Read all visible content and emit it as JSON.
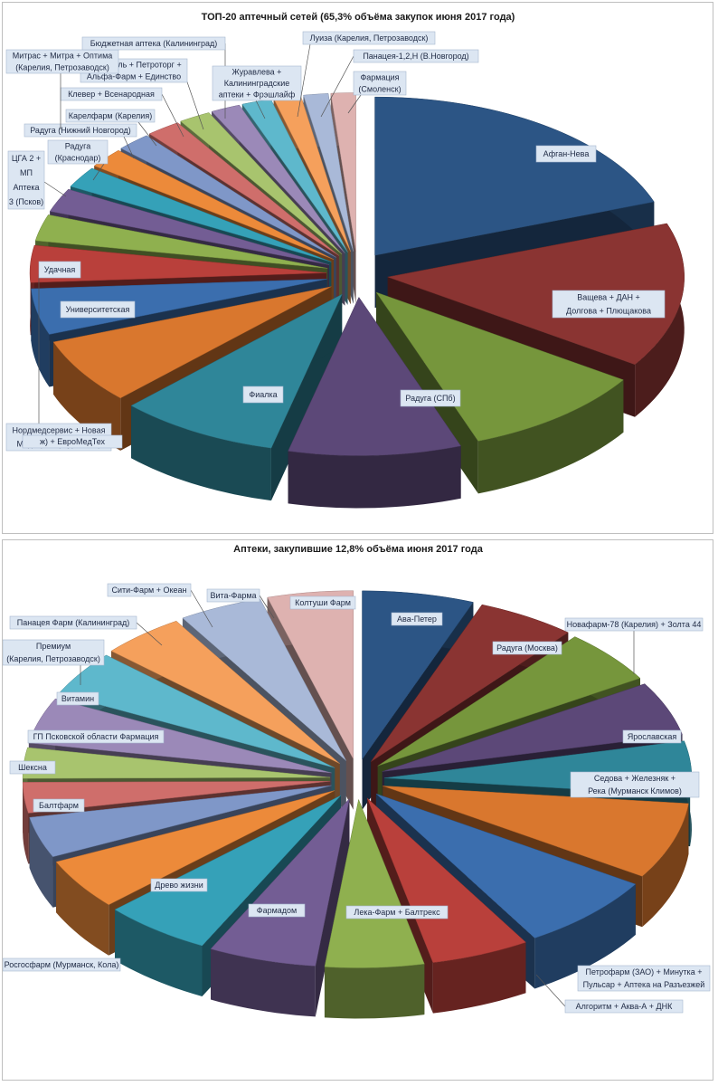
{
  "chart_data": [
    {
      "type": "pie",
      "title": "ТОП-20 аптечный сетей (65,3% объёма закупок июня 2017 года)",
      "slices": [
        {
          "name": "Афган-Нева",
          "value": 14.5,
          "color": "#2c5585"
        },
        {
          "name": "Ващева + ДАН + Долгова + Плющакова",
          "value": 11.0,
          "color": "#8a3432"
        },
        {
          "name": "Радуга (СПб)",
          "value": 7.5,
          "color": "#76963c"
        },
        {
          "name": "Фиалка",
          "value": 7.0,
          "color": "#5c4878"
        },
        {
          "name": "Нордмедсервис + Новая Медицина (Мурманск)",
          "value": 6.5,
          "color": "#2f8699"
        },
        {
          "name": "Университетская",
          "value": 5.0,
          "color": "#d9772e"
        },
        {
          "name": "Удачная",
          "value": 3.5,
          "color": "#3b6eae"
        },
        {
          "name": "ЦГА 2 + МП Аптека 3 (Псков)",
          "value": 2.8,
          "color": "#b9403b"
        },
        {
          "name": "Радуга (Краснодар)",
          "value": 2.0,
          "color": "#8fb04f"
        },
        {
          "name": "Радуга (Нижний Новгород)",
          "value": 1.8,
          "color": "#735d94"
        },
        {
          "name": "Карелфарм (Карелия)",
          "value": 1.6,
          "color": "#35a1b8"
        },
        {
          "name": "Клевер + Всенародная",
          "value": 1.5,
          "color": "#ec8a3a"
        },
        {
          "name": "Петробель + Петроторг + Альфа-Фарм + Единство",
          "value": 1.4,
          "color": "#7f97c8"
        },
        {
          "name": "Митрас + Митра + Оптима (Карелия, Петрозаводск)",
          "value": 1.4,
          "color": "#cf6e6b"
        },
        {
          "name": "Бюджетная аптека (Калининград)",
          "value": 1.3,
          "color": "#a8c46e"
        },
        {
          "name": "Журавлева + Калининградские аптеки + Фрэшлайф",
          "value": 1.2,
          "color": "#9b89b8"
        },
        {
          "name": "Луиза (Карелия, Петрозаводск)",
          "value": 1.2,
          "color": "#5eb8cc"
        },
        {
          "name": "Панацея-1,2,Н (В.Новгород)",
          "value": 1.1,
          "color": "#f5a05c"
        },
        {
          "name": "Фармация (Смоленск)",
          "value": 1.0,
          "color": "#a9b9d8"
        },
        {
          "name": "",
          "value": 1.0,
          "color": "#deb2b0"
        }
      ],
      "notes": "Truncated overlapping label fragments visible",
      "fragments": {
        "f1": "ж) +",
        "f2": "ЕвроМедТех"
      }
    },
    {
      "type": "pie",
      "title": "Аптеки, закупившие 12,8% объёма июня 2017 года",
      "slices": [
        {
          "name": "Ава-Петер",
          "value": 6.0,
          "color": "#2c5585"
        },
        {
          "name": "Радуга (Москва)",
          "value": 5.3,
          "color": "#8a3432"
        },
        {
          "name": "Новафарм-78 (Карелия) + Золта 44",
          "value": 5.3,
          "color": "#76963c"
        },
        {
          "name": "Ярославская",
          "value": 5.3,
          "color": "#5c4878"
        },
        {
          "name": "Седова + Железняк + Река (Мурманск Климов)",
          "value": 5.3,
          "color": "#2f8699"
        },
        {
          "name": "Петрофарм (ЗАО) + Минутка + Пульсар + Аптека на Разъезжей",
          "value": 7.5,
          "color": "#d9772e"
        },
        {
          "name": "Алгоритм + Аква-А + ДНК",
          "value": 7.5,
          "color": "#3b6eae"
        },
        {
          "name": "Лека-Фарм + Балтрекс",
          "value": 5.3,
          "color": "#b9403b"
        },
        {
          "name": "Фармадом",
          "value": 5.3,
          "color": "#8fb04f"
        },
        {
          "name": "Древо жизни",
          "value": 5.8,
          "color": "#735d94"
        },
        {
          "name": "Росгосфарм (Мурманск, Кола)",
          "value": 5.8,
          "color": "#35a1b8"
        },
        {
          "name": "Балтфарм",
          "value": 5.0,
          "color": "#ec8a3a"
        },
        {
          "name": "Шексна",
          "value": 4.0,
          "color": "#7f97c8"
        },
        {
          "name": "ГП Псковской области Фармация",
          "value": 3.0,
          "color": "#cf6e6b"
        },
        {
          "name": "Витамин",
          "value": 3.0,
          "color": "#a8c46e"
        },
        {
          "name": "Премиум (Карелия, Петрозаводск)",
          "value": 4.5,
          "color": "#9b89b8"
        },
        {
          "name": "Панацея Фарм (Калининград)",
          "value": 4.5,
          "color": "#5eb8cc"
        },
        {
          "name": "Сити-Фарм + Океан",
          "value": 4.5,
          "color": "#f5a05c"
        },
        {
          "name": "Вита-Фарма",
          "value": 4.5,
          "color": "#a9b9d8"
        },
        {
          "name": "Колтуши Фарм",
          "value": 4.6,
          "color": "#deb2b0"
        }
      ]
    }
  ]
}
